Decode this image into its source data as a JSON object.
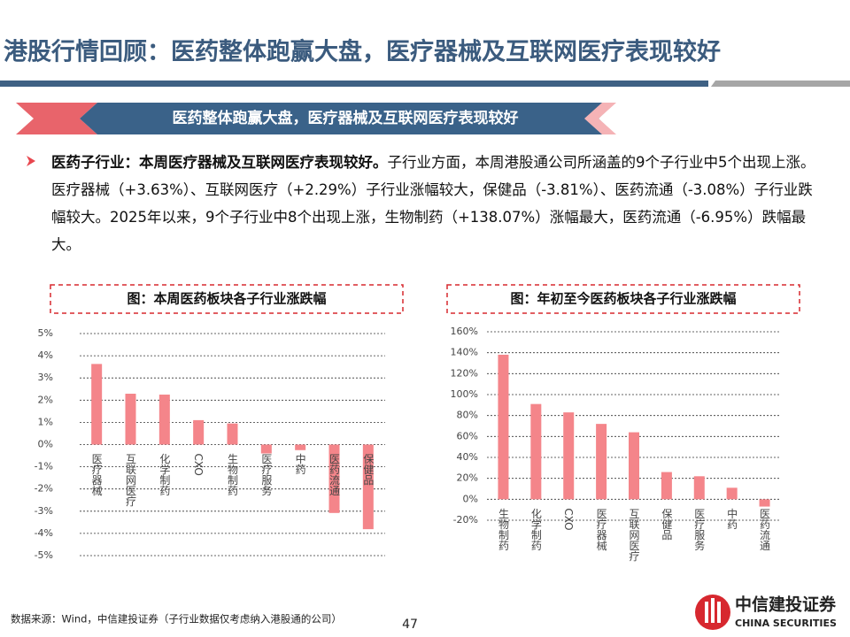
{
  "header": {
    "title": "港股行情回顾：医药整体跑赢大盘，医疗器械及互联网医疗表现较好"
  },
  "banner": {
    "text": "医药整体跑赢大盘，医疗器械及互联网医疗表现较好"
  },
  "paragraph": {
    "lead": "医药子行业：本周医疗器械及互联网医疗表现较好。",
    "body": "子行业方面，本周港股通公司所涵盖的9个子行业中5个出现上涨。医疗器械（+3.63%）、互联网医疗（+2.29%）子行业涨幅较大，保健品（-3.81%）、医药流通（-3.08%）子行业跌幅较大。2025年以来，9个子行业中8个出现上涨，生物制药（+138.07%）涨幅最大，医药流通（-6.95%）跌幅最大。"
  },
  "chart_data": [
    {
      "type": "bar",
      "title": "图：本周医药板块各子行业涨跌幅",
      "categories": [
        "医疗器械",
        "互联网医疗",
        "化学制药",
        "CXO",
        "生物制药",
        "医疗服务",
        "中药",
        "医药流通",
        "保健品"
      ],
      "values": [
        3.63,
        2.29,
        2.25,
        1.1,
        0.95,
        -0.4,
        -0.25,
        -3.08,
        -3.81
      ],
      "color": "#f4858a",
      "ylim": [
        -5,
        5
      ],
      "yticks": [
        {
          "value": -5,
          "label": "-5%"
        },
        {
          "value": -4,
          "label": "-4%"
        },
        {
          "value": -3,
          "label": "-3%"
        },
        {
          "value": -2,
          "label": "-2%"
        },
        {
          "value": -1,
          "label": "-1%"
        },
        {
          "value": 0,
          "label": "0%"
        },
        {
          "value": 1,
          "label": "1%"
        },
        {
          "value": 2,
          "label": "2%"
        },
        {
          "value": 3,
          "label": "3%"
        },
        {
          "value": 4,
          "label": "4%"
        },
        {
          "value": 5,
          "label": "5%"
        }
      ],
      "grid": true
    },
    {
      "type": "bar",
      "title": "图：年初至今医药板块各子行业涨跌幅",
      "categories": [
        "生物制药",
        "化学制药",
        "CXO",
        "医疗器械",
        "互联网医疗",
        "保健品",
        "医疗服务",
        "中药",
        "医药流通"
      ],
      "values": [
        138.07,
        91,
        83,
        72,
        64,
        26,
        22,
        11,
        -6.95
      ],
      "color": "#f4858a",
      "ylim": [
        -20,
        160
      ],
      "yticks": [
        {
          "value": -20,
          "label": "-20%"
        },
        {
          "value": 0,
          "label": "0%"
        },
        {
          "value": 20,
          "label": "20%"
        },
        {
          "value": 40,
          "label": "40%"
        },
        {
          "value": 60,
          "label": "60%"
        },
        {
          "value": 80,
          "label": "80%"
        },
        {
          "value": 100,
          "label": "100%"
        },
        {
          "value": 120,
          "label": "120%"
        },
        {
          "value": 140,
          "label": "140%"
        },
        {
          "value": 160,
          "label": "160%"
        }
      ],
      "grid": true
    }
  ],
  "footer": {
    "source": "数据来源：Wind，中信建投证券（子行业数据仅考虑纳入港股通的公司）",
    "page": 47
  },
  "logo": {
    "name": "中信建投证券",
    "english": "CHINA SECURITIES"
  }
}
